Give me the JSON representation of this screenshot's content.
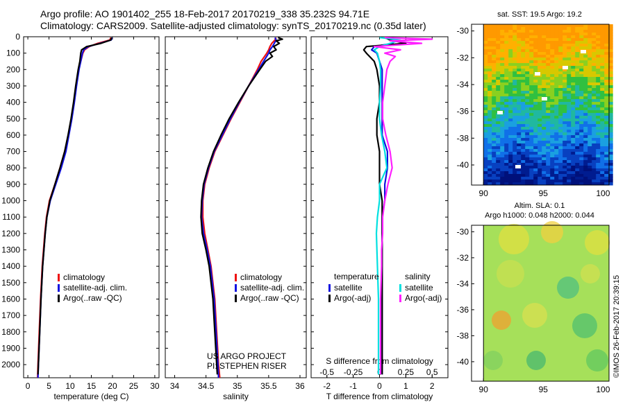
{
  "header": {
    "line1": "Argo profile: AO 1901402_255 18-Feb-2017 20170219_338 35.232S 94.71E",
    "line2": "Climatology: CARS2009. Satellite-adjusted climatology: synTS_20170219.nc (0.35d later)"
  },
  "colors": {
    "climatology": "#ee1111",
    "satellite_adj": "#1010e0",
    "argo": "#000000",
    "sal_satellite": "#00e0e0",
    "sal_argo": "#ff20ff"
  },
  "chart_data": [
    {
      "type": "line",
      "name": "temperature-panel",
      "xlabel": "temperature (deg C)",
      "ylim": [
        2080,
        0
      ],
      "xlim": [
        -1,
        31
      ],
      "xticks": [
        0,
        5,
        10,
        15,
        20,
        25,
        30
      ],
      "yticks": [
        0,
        100,
        200,
        300,
        400,
        500,
        600,
        700,
        800,
        900,
        1000,
        1100,
        1200,
        1300,
        1400,
        1500,
        1600,
        1700,
        1800,
        1900,
        2000
      ],
      "legend": [
        "climatology",
        "satellite-adj. clim.",
        "Argo(..raw -QC)"
      ],
      "series": [
        {
          "name": "climatology",
          "color": "#ee1111",
          "depth": [
            5,
            20,
            40,
            60,
            80,
            100,
            150,
            200,
            300,
            400,
            500,
            600,
            700,
            800,
            900,
            1000,
            1100,
            1200,
            1400,
            1600,
            1800,
            2000,
            2080
          ],
          "values": [
            19.6,
            19.4,
            16.5,
            14.5,
            13.4,
            13.0,
            12.5,
            12.0,
            11.4,
            10.9,
            10.3,
            9.6,
            8.7,
            7.6,
            6.4,
            5.1,
            4.4,
            4.0,
            3.4,
            3.0,
            2.7,
            2.4,
            2.3
          ]
        },
        {
          "name": "satellite-adj. clim.",
          "color": "#1010e0",
          "depth": [
            5,
            20,
            40,
            60,
            80,
            100,
            150,
            200,
            300,
            400,
            500,
            600,
            700,
            800,
            900,
            1000,
            1100,
            1200,
            1400,
            1600,
            1800,
            2000,
            2080
          ],
          "values": [
            19.9,
            19.7,
            17.0,
            14.3,
            13.2,
            12.9,
            12.5,
            12.1,
            11.5,
            11.0,
            10.4,
            9.7,
            9.0,
            7.9,
            6.6,
            5.3,
            4.5,
            4.1,
            3.5,
            3.1,
            2.8,
            2.5,
            2.4
          ]
        },
        {
          "name": "Argo(..raw -QC)",
          "color": "#000000",
          "depth": [
            5,
            20,
            40,
            60,
            80,
            100,
            150,
            200,
            300,
            400,
            500,
            600,
            700,
            800,
            900,
            1000,
            1100,
            1200,
            1400,
            1600,
            1800,
            2000,
            2060
          ],
          "values": [
            19.8,
            19.6,
            17.3,
            13.9,
            12.7,
            12.5,
            12.3,
            11.9,
            11.3,
            10.8,
            10.2,
            9.5,
            8.7,
            7.6,
            6.4,
            5.2,
            4.5,
            4.1,
            3.5,
            3.1,
            2.8,
            2.5,
            2.4
          ]
        }
      ]
    },
    {
      "type": "line",
      "name": "salinity-panel",
      "xlabel": "salinity",
      "ylim": [
        2080,
        0
      ],
      "xlim": [
        33.85,
        36.1
      ],
      "xticks": [
        34,
        34.5,
        35,
        35.5,
        36
      ],
      "legend": [
        "climatology",
        "satellite-adj. clim.",
        "Argo(..raw -QC)"
      ],
      "annotation": [
        "US ARGO PROJECT",
        "PI: STEPHEN RISER"
      ],
      "series": [
        {
          "name": "climatology",
          "color": "#ee1111",
          "depth": [
            5,
            20,
            40,
            60,
            80,
            100,
            150,
            200,
            300,
            400,
            500,
            600,
            700,
            800,
            900,
            1000,
            1100,
            1200,
            1300,
            1400,
            1600,
            1800,
            2000,
            2080
          ],
          "values": [
            35.62,
            35.6,
            35.55,
            35.52,
            35.5,
            35.47,
            35.38,
            35.32,
            35.18,
            35.04,
            34.9,
            34.77,
            34.64,
            34.55,
            34.48,
            34.45,
            34.45,
            34.48,
            34.53,
            34.58,
            34.64,
            34.67,
            34.7,
            34.72
          ]
        },
        {
          "name": "satellite-adj. clim.",
          "color": "#1010e0",
          "depth": [
            5,
            20,
            40,
            60,
            80,
            100,
            150,
            200,
            300,
            400,
            500,
            600,
            700,
            800,
            900,
            1000,
            1100,
            1200,
            1300,
            1400,
            1600,
            1800,
            2000,
            2080
          ],
          "values": [
            35.6,
            35.62,
            35.59,
            35.56,
            35.52,
            35.5,
            35.42,
            35.34,
            35.18,
            35.03,
            34.89,
            34.76,
            34.63,
            34.54,
            34.47,
            34.44,
            34.43,
            34.46,
            34.52,
            34.57,
            34.63,
            34.66,
            34.69,
            34.7
          ]
        },
        {
          "name": "Argo(..raw -QC)",
          "color": "#000000",
          "depth": [
            5,
            15,
            25,
            40,
            60,
            80,
            100,
            120,
            150,
            200,
            300,
            400,
            500,
            600,
            700,
            800,
            900,
            1000,
            1100,
            1200,
            1300,
            1400,
            1600,
            1800,
            2000,
            2060
          ],
          "values": [
            35.65,
            35.72,
            35.62,
            35.67,
            35.58,
            35.62,
            35.52,
            35.56,
            35.45,
            35.36,
            35.18,
            35.02,
            34.87,
            34.74,
            34.62,
            34.53,
            34.46,
            34.43,
            34.42,
            34.44,
            34.5,
            34.55,
            34.61,
            34.64,
            34.67,
            34.68
          ]
        }
      ]
    },
    {
      "type": "line",
      "name": "difference-panel",
      "xlabel": "T difference from climatology",
      "xlabel_top": "S difference from climatology",
      "ylim": [
        2080,
        0
      ],
      "xlim": [
        -2.6,
        2.6
      ],
      "xticks": [
        -2,
        -1,
        0,
        1,
        2
      ],
      "sticks": [
        -0.5,
        -0.25,
        0,
        0.25,
        0.5
      ],
      "legend_headers": [
        "temperature",
        "salinity"
      ],
      "legend": [
        "satellite",
        "Argo(-adj)",
        "satellite",
        "Argo(-adj)"
      ],
      "series": [
        {
          "name": "satellite",
          "color": "#1010e0",
          "depth": [
            5,
            20,
            40,
            60,
            80,
            100,
            150,
            200,
            300,
            400,
            500,
            600,
            700,
            800,
            900,
            1000,
            1100,
            1200,
            1400,
            1600,
            1800,
            2000,
            2060
          ],
          "values": [
            0.3,
            0.6,
            0.5,
            -0.2,
            -0.3,
            -0.1,
            0.0,
            0.1,
            0.1,
            0.1,
            0.1,
            0.1,
            0.3,
            0.3,
            0.2,
            0.2,
            0.1,
            0.1,
            0.1,
            0.1,
            0.1,
            0.1,
            0.1
          ]
        },
        {
          "name": "Argo(-adj)",
          "color": "#000000",
          "depth": [
            5,
            20,
            40,
            60,
            80,
            100,
            150,
            200,
            300,
            400,
            500,
            600,
            700,
            800,
            900,
            1000,
            1100,
            1200,
            1400,
            1600,
            1800,
            2000,
            2060
          ],
          "values": [
            0.2,
            0.4,
            1.0,
            -0.5,
            -0.6,
            -0.5,
            -0.2,
            -0.1,
            0.0,
            0.0,
            -0.1,
            -0.1,
            0.0,
            0.0,
            0.0,
            0.1,
            0.1,
            0.1,
            0.1,
            0.1,
            0.1,
            0.1,
            0.1
          ]
        },
        {
          "name": "satellite",
          "color": "#00e0e0",
          "depth": [
            5,
            20,
            40,
            60,
            80,
            100,
            150,
            200,
            300,
            400,
            500,
            600,
            700,
            800,
            900,
            1000,
            1100,
            1200,
            1400,
            1600,
            1800,
            2000,
            2060
          ],
          "values": [
            0.0,
            0.2,
            0.1,
            0.0,
            -0.05,
            -0.02,
            0.0,
            0.01,
            0.01,
            0.0,
            0.0,
            0.02,
            0.05,
            0.07,
            0.0,
            0.0,
            -0.02,
            -0.03,
            -0.02,
            -0.01,
            -0.01,
            -0.01,
            -0.01
          ]
        },
        {
          "name": "Argo(-adj)",
          "color": "#ff20ff",
          "depth": [
            5,
            15,
            25,
            40,
            60,
            80,
            100,
            120,
            150,
            200,
            300,
            400,
            500,
            600,
            700,
            800,
            900,
            1000,
            1100,
            1200,
            1300,
            1400,
            1600,
            1800,
            2000,
            2060
          ],
          "values": [
            0.05,
            0.5,
            0.1,
            0.4,
            -0.05,
            0.2,
            0.05,
            0.15,
            0.1,
            0.07,
            0.05,
            0.03,
            0.03,
            0.06,
            0.1,
            0.12,
            0.08,
            0.05,
            0.03,
            0.03,
            0.02,
            0.02,
            0.01,
            0.01,
            0.01,
            0.01
          ]
        }
      ]
    },
    {
      "type": "heatmap",
      "name": "sst-map",
      "title": "sat. SST: 19.5 Argo: 19.2",
      "xlim": [
        89,
        100.5
      ],
      "ylim": [
        -41.5,
        -29.5
      ],
      "xticks": [
        90,
        95,
        100
      ],
      "yticks": [
        -30,
        -32,
        -34,
        -36,
        -38,
        -40
      ]
    },
    {
      "type": "heatmap",
      "name": "sla-map",
      "title_lines": [
        "Altim. SLA: 0.1",
        "Argo h1000: 0.048 h2000: 0.044"
      ],
      "xlim": [
        89,
        100.5
      ],
      "ylim": [
        -41.5,
        -29.5
      ],
      "xticks": [
        90,
        95,
        100
      ],
      "yticks": [
        -30,
        -32,
        -34,
        -36,
        -38,
        -40
      ]
    }
  ],
  "credit": "©IMOS 26-Feb-2017 20:39:15"
}
